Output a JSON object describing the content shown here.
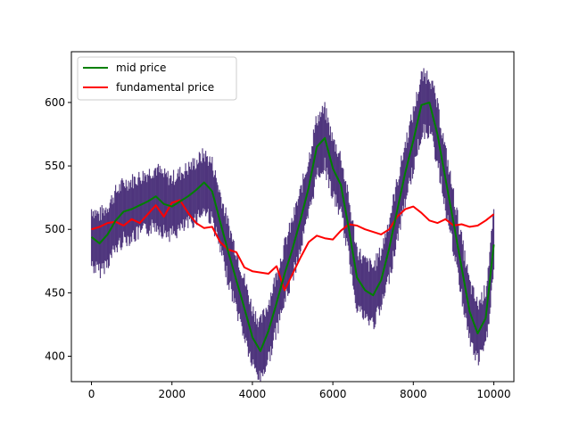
{
  "chart_data": {
    "type": "line",
    "title": "",
    "xlabel": "",
    "ylabel": "",
    "xlim": [
      -500,
      10500
    ],
    "ylim": [
      380,
      640
    ],
    "x_ticks": [
      0,
      2000,
      4000,
      6000,
      8000,
      10000
    ],
    "y_ticks": [
      400,
      450,
      500,
      550,
      600
    ],
    "grid": false,
    "legend_position": "top-left",
    "series": [
      {
        "name": "mid price",
        "color": "#008000",
        "x": [
          0,
          200,
          400,
          600,
          800,
          1000,
          1200,
          1400,
          1600,
          1800,
          2000,
          2200,
          2400,
          2600,
          2800,
          3000,
          3200,
          3400,
          3600,
          3800,
          4000,
          4200,
          4400,
          4600,
          4800,
          5000,
          5200,
          5400,
          5600,
          5800,
          6000,
          6200,
          6400,
          6600,
          6800,
          7000,
          7200,
          7400,
          7600,
          7800,
          8000,
          8200,
          8400,
          8600,
          8800,
          9000,
          9200,
          9400,
          9600,
          9800,
          10000
        ],
        "y": [
          494,
          489,
          496,
          507,
          514,
          516,
          519,
          522,
          526,
          520,
          518,
          522,
          526,
          531,
          537,
          530,
          506,
          482,
          460,
          438,
          415,
          404,
          420,
          442,
          465,
          485,
          508,
          533,
          565,
          572,
          548,
          535,
          500,
          462,
          452,
          448,
          460,
          485,
          515,
          545,
          570,
          598,
          600,
          575,
          540,
          505,
          470,
          435,
          418,
          430,
          488
        ]
      },
      {
        "name": "fundamental price",
        "color": "#ff0000",
        "x": [
          0,
          200,
          400,
          600,
          800,
          1000,
          1200,
          1400,
          1600,
          1800,
          2000,
          2200,
          2400,
          2600,
          2800,
          3000,
          3200,
          3400,
          3600,
          3800,
          4000,
          4200,
          4400,
          4600,
          4800,
          5000,
          5200,
          5400,
          5600,
          5800,
          6000,
          6200,
          6400,
          6600,
          6800,
          7000,
          7200,
          7400,
          7600,
          7800,
          8000,
          8200,
          8400,
          8600,
          8800,
          9000,
          9200,
          9400,
          9600,
          9800,
          10000
        ],
        "y": [
          500,
          502,
          505,
          506,
          503,
          508,
          505,
          512,
          519,
          510,
          521,
          523,
          513,
          505,
          501,
          502,
          490,
          484,
          482,
          470,
          467,
          466,
          465,
          471,
          452,
          465,
          478,
          490,
          495,
          493,
          492,
          499,
          504,
          503,
          500,
          498,
          496,
          500,
          510,
          516,
          518,
          513,
          507,
          505,
          508,
          503,
          504,
          502,
          503,
          507,
          512
        ]
      }
    ],
    "background_band": {
      "description": "order book price scatter around mid price",
      "color": "#3b1f6e",
      "half_width": 22
    }
  }
}
